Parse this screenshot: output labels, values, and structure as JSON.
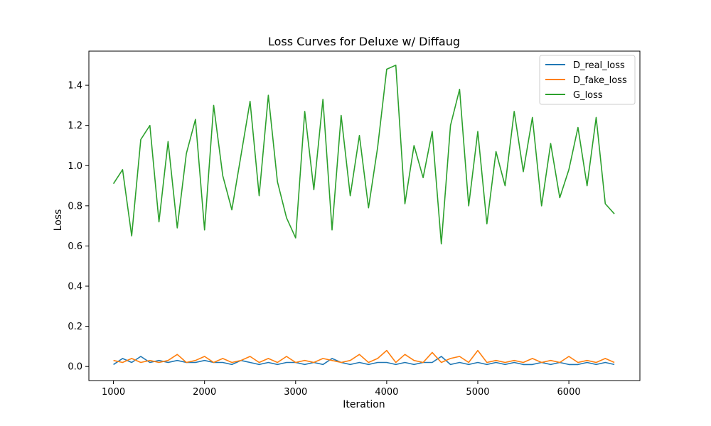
{
  "chart_data": {
    "type": "line",
    "title": "Loss Curves for Deluxe w/ Diffaug",
    "xlabel": "Iteration",
    "ylabel": "Loss",
    "xlim": [
      730,
      6780
    ],
    "ylim": [
      -0.07,
      1.57
    ],
    "xticks": [
      1000,
      2000,
      3000,
      4000,
      5000,
      6000
    ],
    "yticks": [
      0.0,
      0.2,
      0.4,
      0.6,
      0.8,
      1.0,
      1.2,
      1.4
    ],
    "grid": false,
    "legend_position": "top-right",
    "x": [
      1000,
      1100,
      1200,
      1300,
      1400,
      1500,
      1600,
      1700,
      1800,
      1900,
      2000,
      2100,
      2200,
      2300,
      2400,
      2500,
      2600,
      2700,
      2800,
      2900,
      3000,
      3100,
      3200,
      3300,
      3400,
      3500,
      3600,
      3700,
      3800,
      3900,
      4000,
      4100,
      4200,
      4300,
      4400,
      4500,
      4600,
      4700,
      4800,
      4900,
      5000,
      5100,
      5200,
      5300,
      5400,
      5500,
      5600,
      5700,
      5800,
      5900,
      6000,
      6100,
      6200,
      6300,
      6400,
      6500
    ],
    "series": [
      {
        "name": "D_real_loss",
        "color": "#1f77b4",
        "values": [
          0.01,
          0.04,
          0.02,
          0.05,
          0.02,
          0.03,
          0.02,
          0.03,
          0.02,
          0.02,
          0.03,
          0.02,
          0.02,
          0.01,
          0.03,
          0.02,
          0.01,
          0.02,
          0.01,
          0.02,
          0.02,
          0.01,
          0.02,
          0.01,
          0.04,
          0.02,
          0.01,
          0.02,
          0.01,
          0.02,
          0.02,
          0.01,
          0.02,
          0.01,
          0.02,
          0.02,
          0.05,
          0.01,
          0.02,
          0.01,
          0.02,
          0.01,
          0.02,
          0.01,
          0.02,
          0.01,
          0.01,
          0.02,
          0.01,
          0.02,
          0.01,
          0.01,
          0.02,
          0.01,
          0.02,
          0.01
        ]
      },
      {
        "name": "D_fake_loss",
        "color": "#ff7f0e",
        "values": [
          0.03,
          0.02,
          0.04,
          0.02,
          0.03,
          0.02,
          0.03,
          0.06,
          0.02,
          0.03,
          0.05,
          0.02,
          0.04,
          0.02,
          0.03,
          0.05,
          0.02,
          0.04,
          0.02,
          0.05,
          0.02,
          0.03,
          0.02,
          0.04,
          0.03,
          0.02,
          0.03,
          0.06,
          0.02,
          0.04,
          0.08,
          0.02,
          0.06,
          0.03,
          0.02,
          0.07,
          0.02,
          0.04,
          0.05,
          0.02,
          0.08,
          0.02,
          0.03,
          0.02,
          0.03,
          0.02,
          0.04,
          0.02,
          0.03,
          0.02,
          0.05,
          0.02,
          0.03,
          0.02,
          0.04,
          0.02
        ]
      },
      {
        "name": "G_loss",
        "color": "#2ca02c",
        "values": [
          0.91,
          0.98,
          0.65,
          1.13,
          1.2,
          0.72,
          1.12,
          0.69,
          1.06,
          1.23,
          0.68,
          1.3,
          0.95,
          0.78,
          1.05,
          1.32,
          0.85,
          1.35,
          0.92,
          0.74,
          0.64,
          1.27,
          0.88,
          1.33,
          0.68,
          1.25,
          0.85,
          1.15,
          0.79,
          1.09,
          1.48,
          1.5,
          0.81,
          1.1,
          0.94,
          1.17,
          0.61,
          1.2,
          1.38,
          0.8,
          1.17,
          0.71,
          1.07,
          0.9,
          1.27,
          0.97,
          1.24,
          0.8,
          1.11,
          0.84,
          0.98,
          1.19,
          0.9,
          1.24,
          0.81,
          0.76
        ]
      }
    ]
  }
}
